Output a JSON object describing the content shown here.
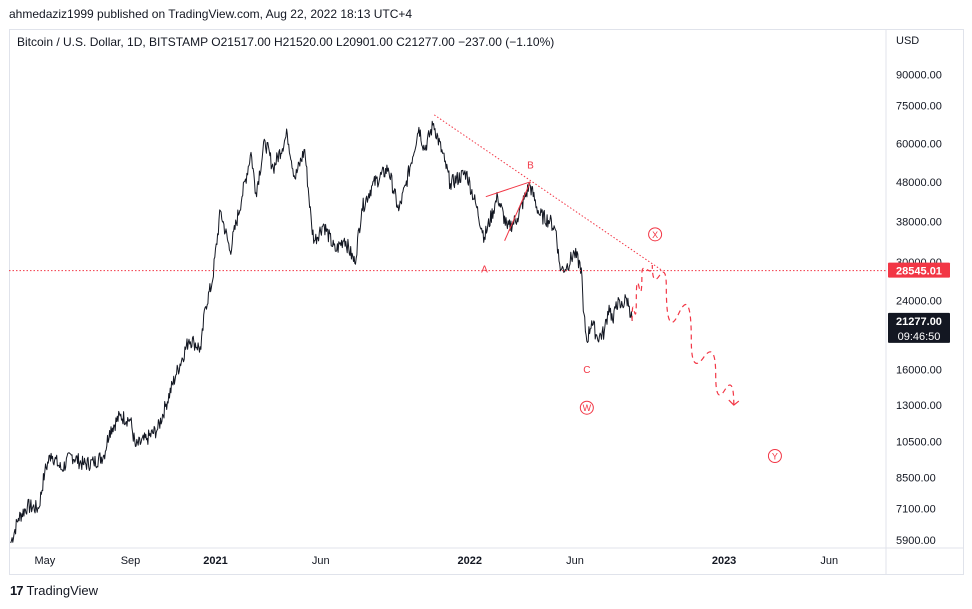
{
  "header": {
    "publisher_line": "ahmedaziz1999 published on TradingView.com, Aug 22, 2022 18:13 UTC+4"
  },
  "symbol_bar": {
    "text": "Bitcoin / U.S. Dollar, 1D, BITSTAMP  O21517.00  H21520.00  L20901.00  C21277.00  −237.00 (−1.10%)"
  },
  "footer": {
    "brand": "TradingView",
    "logo_icon": "tradingview-logo-icon"
  },
  "chart_data": {
    "type": "line",
    "currency_label": "USD",
    "scale": "log",
    "ylim": [
      5700,
      105000
    ],
    "y_ticks": [
      {
        "value": 90000,
        "label": "90000.00"
      },
      {
        "value": 75000,
        "label": "75000.00"
      },
      {
        "value": 60000,
        "label": "60000.00"
      },
      {
        "value": 48000,
        "label": "48000.00"
      },
      {
        "value": 38000,
        "label": "38000.00"
      },
      {
        "value": 30000,
        "label": "30000.00"
      },
      {
        "value": 24000,
        "label": "24000.00"
      },
      {
        "value": 16000,
        "label": "16000.00"
      },
      {
        "value": 13000,
        "label": "13000.00"
      },
      {
        "value": 10500,
        "label": "10500.00"
      },
      {
        "value": 8500,
        "label": "8500.00"
      },
      {
        "value": 7100,
        "label": "7100.00"
      },
      {
        "value": 5900,
        "label": "5900.00"
      }
    ],
    "x_ticks": [
      {
        "date": "2020-05-01",
        "label": "May",
        "bold": false
      },
      {
        "date": "2020-09-01",
        "label": "Sep",
        "bold": false
      },
      {
        "date": "2021-01-01",
        "label": "2021",
        "bold": true
      },
      {
        "date": "2021-06-01",
        "label": "Jun",
        "bold": false
      },
      {
        "date": "2022-01-01",
        "label": "2022",
        "bold": true
      },
      {
        "date": "2022-06-01",
        "label": "Jun",
        "bold": false
      },
      {
        "date": "2023-01-01",
        "label": "2023",
        "bold": true
      },
      {
        "date": "2023-06-01",
        "label": "Jun",
        "bold": false
      }
    ],
    "xlim": [
      "2020-03-12",
      "2023-08-20"
    ],
    "series": [
      {
        "color": "#131722",
        "points": [
          {
            "x": "2020-03-13",
            "y": 5800
          },
          {
            "x": "2020-03-24",
            "y": 6700
          },
          {
            "x": "2020-04-06",
            "y": 7200
          },
          {
            "x": "2020-04-22",
            "y": 7100
          },
          {
            "x": "2020-05-01",
            "y": 8800
          },
          {
            "x": "2020-05-10",
            "y": 9800
          },
          {
            "x": "2020-05-25",
            "y": 8900
          },
          {
            "x": "2020-06-08",
            "y": 9700
          },
          {
            "x": "2020-06-25",
            "y": 9200
          },
          {
            "x": "2020-07-10",
            "y": 9300
          },
          {
            "x": "2020-07-25",
            "y": 9700
          },
          {
            "x": "2020-08-02",
            "y": 11200
          },
          {
            "x": "2020-08-17",
            "y": 12200
          },
          {
            "x": "2020-09-01",
            "y": 11900
          },
          {
            "x": "2020-09-08",
            "y": 10200
          },
          {
            "x": "2020-09-25",
            "y": 10700
          },
          {
            "x": "2020-10-10",
            "y": 11300
          },
          {
            "x": "2020-10-21",
            "y": 12900
          },
          {
            "x": "2020-11-05",
            "y": 15500
          },
          {
            "x": "2020-11-24",
            "y": 19100
          },
          {
            "x": "2020-12-01",
            "y": 18800
          },
          {
            "x": "2020-12-11",
            "y": 18000
          },
          {
            "x": "2020-12-17",
            "y": 23000
          },
          {
            "x": "2020-12-27",
            "y": 26500
          },
          {
            "x": "2021-01-08",
            "y": 40500
          },
          {
            "x": "2021-01-22",
            "y": 32000
          },
          {
            "x": "2021-02-08",
            "y": 44000
          },
          {
            "x": "2021-02-21",
            "y": 57000
          },
          {
            "x": "2021-02-28",
            "y": 45000
          },
          {
            "x": "2021-03-13",
            "y": 61000
          },
          {
            "x": "2021-03-25",
            "y": 52000
          },
          {
            "x": "2021-04-14",
            "y": 63500
          },
          {
            "x": "2021-04-25",
            "y": 49000
          },
          {
            "x": "2021-05-09",
            "y": 58000
          },
          {
            "x": "2021-05-19",
            "y": 37000
          },
          {
            "x": "2021-05-23",
            "y": 34000
          },
          {
            "x": "2021-06-05",
            "y": 37500
          },
          {
            "x": "2021-06-22",
            "y": 32000
          },
          {
            "x": "2021-07-05",
            "y": 34500
          },
          {
            "x": "2021-07-20",
            "y": 29800
          },
          {
            "x": "2021-07-30",
            "y": 41000
          },
          {
            "x": "2021-08-14",
            "y": 47000
          },
          {
            "x": "2021-09-06",
            "y": 52000
          },
          {
            "x": "2021-09-21",
            "y": 40500
          },
          {
            "x": "2021-10-01",
            "y": 47000
          },
          {
            "x": "2021-10-20",
            "y": 66000
          },
          {
            "x": "2021-10-28",
            "y": 58000
          },
          {
            "x": "2021-11-10",
            "y": 67500
          },
          {
            "x": "2021-11-26",
            "y": 54000
          },
          {
            "x": "2021-12-04",
            "y": 47500
          },
          {
            "x": "2021-12-27",
            "y": 50700
          },
          {
            "x": "2022-01-10",
            "y": 41800
          },
          {
            "x": "2022-01-22",
            "y": 34700
          },
          {
            "x": "2022-02-10",
            "y": 44000
          },
          {
            "x": "2022-02-24",
            "y": 36500
          },
          {
            "x": "2022-03-10",
            "y": 38800
          },
          {
            "x": "2022-03-28",
            "y": 47300
          },
          {
            "x": "2022-04-11",
            "y": 39600
          },
          {
            "x": "2022-04-26",
            "y": 38200
          },
          {
            "x": "2022-05-05",
            "y": 36000
          },
          {
            "x": "2022-05-09",
            "y": 30200
          },
          {
            "x": "2022-05-12",
            "y": 28700
          },
          {
            "x": "2022-05-20",
            "y": 29200
          },
          {
            "x": "2022-05-31",
            "y": 31700
          },
          {
            "x": "2022-06-10",
            "y": 29000
          },
          {
            "x": "2022-06-13",
            "y": 22500
          },
          {
            "x": "2022-06-18",
            "y": 18900
          },
          {
            "x": "2022-06-25",
            "y": 21300
          },
          {
            "x": "2022-07-03",
            "y": 19300
          },
          {
            "x": "2022-07-13",
            "y": 19900
          },
          {
            "x": "2022-07-20",
            "y": 23300
          },
          {
            "x": "2022-07-26",
            "y": 21000
          },
          {
            "x": "2022-07-30",
            "y": 23800
          },
          {
            "x": "2022-08-06",
            "y": 23100
          },
          {
            "x": "2022-08-14",
            "y": 24300
          },
          {
            "x": "2022-08-18",
            "y": 23200
          },
          {
            "x": "2022-08-22",
            "y": 21277
          }
        ]
      }
    ],
    "price_markers": [
      {
        "value": 28545.01,
        "label": "28545.01",
        "bg": "#f23645",
        "fg": "#ffffff"
      },
      {
        "value": 21277.0,
        "label": "21277.00",
        "sublabel": "09:46:50",
        "bg": "#131722",
        "fg": "#ffffff"
      }
    ],
    "annotations": {
      "color": "#f23645",
      "horizontal_line": {
        "value": 28545.01
      },
      "trendline": [
        {
          "x": "2021-11-11",
          "y": 71000
        },
        {
          "x": "2022-10-05",
          "y": 28500
        }
      ],
      "b_wave_lines": [
        [
          {
            "x": "2022-01-24",
            "y": 44000
          },
          {
            "x": "2022-03-29",
            "y": 48000
          }
        ],
        [
          {
            "x": "2022-02-20",
            "y": 34000
          },
          {
            "x": "2022-03-29",
            "y": 48000
          }
        ]
      ],
      "projection_path": [
        {
          "x": "2022-08-22",
          "y": 21277
        },
        {
          "x": "2022-08-28",
          "y": 24000
        },
        {
          "x": "2022-09-05",
          "y": 28000
        },
        {
          "x": "2022-09-20",
          "y": 29500
        },
        {
          "x": "2022-10-10",
          "y": 26000
        },
        {
          "x": "2022-11-15",
          "y": 19000
        },
        {
          "x": "2022-12-20",
          "y": 15500
        },
        {
          "x": "2023-01-15",
          "y": 13000
        }
      ],
      "labels": [
        {
          "text": "A",
          "x": "2022-01-22",
          "y": 28800,
          "circled": false
        },
        {
          "text": "B",
          "x": "2022-03-29",
          "y": 53000,
          "circled": false
        },
        {
          "text": "C",
          "x": "2022-06-18",
          "y": 16000,
          "circled": false
        },
        {
          "text": "W",
          "x": "2022-06-18",
          "y": 12800,
          "circled": true
        },
        {
          "text": "X",
          "x": "2022-09-24",
          "y": 35300,
          "circled": true
        },
        {
          "text": "Y",
          "x": "2023-03-15",
          "y": 9650,
          "circled": true
        }
      ]
    },
    "grid": false
  }
}
